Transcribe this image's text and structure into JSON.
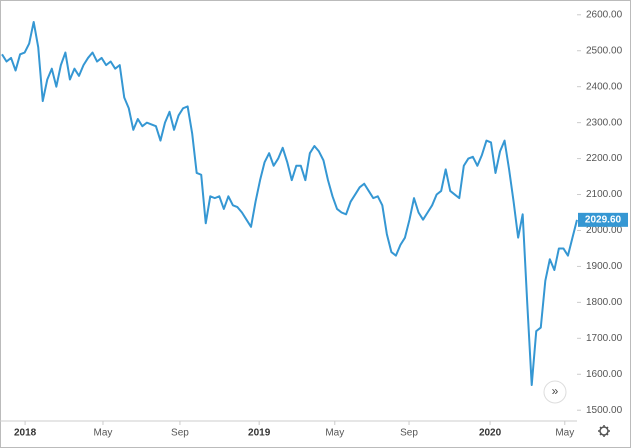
{
  "chart_data": {
    "type": "line",
    "values": [
      2490,
      2470,
      2480,
      2445,
      2490,
      2495,
      2520,
      2580,
      2510,
      2360,
      2420,
      2450,
      2400,
      2460,
      2495,
      2420,
      2450,
      2430,
      2460,
      2480,
      2495,
      2470,
      2480,
      2460,
      2470,
      2450,
      2460,
      2370,
      2340,
      2280,
      2310,
      2290,
      2300,
      2295,
      2290,
      2250,
      2300,
      2330,
      2280,
      2320,
      2340,
      2345,
      2270,
      2160,
      2155,
      2020,
      2095,
      2090,
      2095,
      2060,
      2095,
      2070,
      2065,
      2050,
      2030,
      2010,
      2080,
      2140,
      2190,
      2215,
      2180,
      2200,
      2230,
      2190,
      2140,
      2180,
      2180,
      2140,
      2215,
      2235,
      2220,
      2195,
      2140,
      2095,
      2060,
      2050,
      2045,
      2080,
      2100,
      2120,
      2130,
      2110,
      2090,
      2095,
      2070,
      1990,
      1940,
      1930,
      1960,
      1980,
      2030,
      2090,
      2050,
      2030,
      2050,
      2070,
      2100,
      2110,
      2170,
      2110,
      2100,
      2090,
      2180,
      2200,
      2205,
      2180,
      2210,
      2250,
      2245,
      2160,
      2220,
      2250,
      2170,
      2080,
      1980,
      2045,
      1800,
      1570,
      1720,
      1730,
      1860,
      1920,
      1890,
      1950,
      1950,
      1930,
      1980,
      2029.6
    ],
    "value_labels": [
      null,
      null,
      null,
      null,
      null,
      null,
      null,
      null,
      null,
      null,
      null,
      null,
      null,
      null,
      null,
      null,
      null,
      null,
      null,
      null,
      null,
      null,
      null,
      null,
      null,
      null,
      null,
      null,
      null,
      null,
      null,
      null,
      null,
      null,
      null,
      null,
      null,
      null,
      null,
      null,
      null,
      null,
      null,
      null,
      null,
      null,
      null,
      null,
      null,
      null,
      null,
      null,
      null,
      null,
      null,
      null,
      null,
      null,
      null,
      null,
      null,
      null,
      null,
      null,
      null,
      null,
      null,
      null,
      null,
      null,
      null,
      null,
      null,
      null,
      null,
      null,
      null,
      null,
      null,
      null,
      null,
      null,
      null,
      null,
      null,
      null,
      null,
      null,
      null,
      null,
      null,
      null,
      null,
      null,
      null,
      null,
      null,
      null,
      null,
      null,
      null,
      null,
      null,
      null,
      null,
      null,
      null,
      null,
      null,
      null,
      null,
      null,
      null,
      null,
      null,
      null,
      null,
      null,
      null,
      null,
      null,
      null,
      null,
      null,
      null,
      null,
      null,
      "2029.60"
    ],
    "color": "#3597d3",
    "ylim": [
      1470,
      2630
    ],
    "yticks": [
      {
        "value": 1500,
        "label": "1500.00"
      },
      {
        "value": 1600,
        "label": "1600.00"
      },
      {
        "value": 1700,
        "label": "1700.00"
      },
      {
        "value": 1800,
        "label": "1800.00"
      },
      {
        "value": 1900,
        "label": "1900.00"
      },
      {
        "value": 2000,
        "label": "2000.00"
      },
      {
        "value": 2100,
        "label": "2100.00"
      },
      {
        "value": 2200,
        "label": "2200.00"
      },
      {
        "value": 2300,
        "label": "2300.00"
      },
      {
        "value": 2400,
        "label": "2400.00"
      },
      {
        "value": 2500,
        "label": "2500.00"
      },
      {
        "value": 2600,
        "label": "2600.00"
      }
    ],
    "xticks": [
      {
        "value": 5.1,
        "label": "2018"
      },
      {
        "value": 22.3,
        "label": "May"
      },
      {
        "value": 39.3,
        "label": "Sep"
      },
      {
        "value": 56.8,
        "label": "2019"
      },
      {
        "value": 73.5,
        "label": "May"
      },
      {
        "value": 89.9,
        "label": "Sep"
      },
      {
        "value": 107.8,
        "label": "2020"
      },
      {
        "value": 124.3,
        "label": "May"
      }
    ],
    "grid": false
  }
}
